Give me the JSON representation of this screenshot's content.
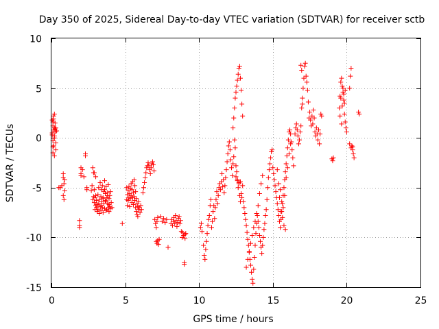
{
  "chart_data": {
    "type": "scatter",
    "title": "Day 350 of 2025, Sidereal Day-to-day VTEC variation (SDTVAR) for receiver sctb",
    "xlabel": "GPS time / hours",
    "ylabel": "SDTVAR / TECUs",
    "xlim": [
      0,
      25
    ],
    "ylim": [
      -15,
      10
    ],
    "xticks": [
      0,
      5,
      10,
      15,
      20,
      25
    ],
    "yticks": [
      -15,
      -10,
      -5,
      0,
      5,
      10
    ],
    "xtick_labels": [
      "0",
      "5",
      "10",
      "15",
      "20",
      "25"
    ],
    "ytick_labels": [
      "-15",
      "-10",
      "-5",
      "0",
      "5",
      "10"
    ],
    "grid": true,
    "marker": "+",
    "color": "#ff0000",
    "series": [
      {
        "name": "SDTVAR",
        "x": [
          0.05,
          0.05,
          0.1,
          0.1,
          0.1,
          0.15,
          0.15,
          0.15,
          0.2,
          0.2,
          0.2,
          0.25,
          0.25,
          0.3,
          0.3,
          0.05,
          0.1,
          0.15,
          0.2,
          0.25,
          0.3,
          0.35,
          0.1,
          0.2,
          0.5,
          0.6,
          0.7,
          0.8,
          0.8,
          0.8,
          0.85,
          0.85,
          0.9,
          0.9,
          1.9,
          1.9,
          1.9,
          2.0,
          2.0,
          2.0,
          2.1,
          2.2,
          2.3,
          2.3,
          2.4,
          2.4,
          2.7,
          2.75,
          2.8,
          2.8,
          2.85,
          2.85,
          2.9,
          2.9,
          2.95,
          2.95,
          3.0,
          3.0,
          3.05,
          3.05,
          3.1,
          3.1,
          3.15,
          3.15,
          3.2,
          3.2,
          3.25,
          3.25,
          3.3,
          3.3,
          3.35,
          3.35,
          3.4,
          3.4,
          3.45,
          3.45,
          3.5,
          3.5,
          3.55,
          3.55,
          3.6,
          3.6,
          3.65,
          3.65,
          3.7,
          3.7,
          3.75,
          3.75,
          3.8,
          3.8,
          3.85,
          3.85,
          3.9,
          3.9,
          3.95,
          3.95,
          4.0,
          4.0,
          4.05,
          4.1,
          2.9,
          3.0,
          3.4,
          3.5,
          3.6,
          3.7,
          3.8,
          3.9,
          4.8,
          5.1,
          5.1,
          5.15,
          5.15,
          5.2,
          5.2,
          5.25,
          5.25,
          5.3,
          5.3,
          5.35,
          5.35,
          5.4,
          5.4,
          5.45,
          5.45,
          5.5,
          5.5,
          5.55,
          5.55,
          5.6,
          5.6,
          5.65,
          5.65,
          5.7,
          5.7,
          5.75,
          5.75,
          5.8,
          5.8,
          5.85,
          5.85,
          5.9,
          5.9,
          5.95,
          6.0,
          6.05,
          6.1,
          6.2,
          6.25,
          6.3,
          6.35,
          6.4,
          6.45,
          6.5,
          6.55,
          6.6,
          6.65,
          6.7,
          6.75,
          6.8,
          6.85,
          6.9,
          6.95,
          7.0,
          7.05,
          7.1,
          7.15,
          7.2,
          7.1,
          7.15,
          7.2,
          7.25,
          7.3,
          7.4,
          7.5,
          7.6,
          7.7,
          7.8,
          7.9,
          8.1,
          8.15,
          8.2,
          8.25,
          8.3,
          8.35,
          8.4,
          8.45,
          8.5,
          8.55,
          8.6,
          8.65,
          8.7,
          8.75,
          8.8,
          8.85,
          8.9,
          8.95,
          9.0,
          9.0,
          9.05,
          9.05,
          9.1,
          10.1,
          10.15,
          10.2,
          10.3,
          10.35,
          10.4,
          10.45,
          10.5,
          10.55,
          10.6,
          10.65,
          10.7,
          10.75,
          10.8,
          10.85,
          10.9,
          10.95,
          11.0,
          11.05,
          11.1,
          11.15,
          11.2,
          11.25,
          11.3,
          11.35,
          11.4,
          11.45,
          11.5,
          11.55,
          11.6,
          11.65,
          11.7,
          11.75,
          11.8,
          11.85,
          11.9,
          11.95,
          12.0,
          12.05,
          12.1,
          12.15,
          12.2,
          12.25,
          12.3,
          12.35,
          12.4,
          12.45,
          12.5,
          12.55,
          12.6,
          12.65,
          12.7,
          12.75,
          12.8,
          12.85,
          12.9,
          12.95,
          12.3,
          12.35,
          12.4,
          12.45,
          12.5,
          12.55,
          12.6,
          12.65,
          12.7,
          12.75,
          12.8,
          12.85,
          12.9,
          12.95,
          12.5,
          12.6,
          12.7,
          12.8,
          13.0,
          13.05,
          13.1,
          13.15,
          13.2,
          13.25,
          13.3,
          13.35,
          13.4,
          13.45,
          13.5,
          13.55,
          13.6,
          13.65,
          13.7,
          13.75,
          13.8,
          13.85,
          13.9,
          13.95,
          14.0,
          14.05,
          14.1,
          14.15,
          14.2,
          14.25,
          14.3,
          14.35,
          14.4,
          14.45,
          14.5,
          14.55,
          14.6,
          14.65,
          14.7,
          14.75,
          14.8,
          14.85,
          14.9,
          14.95,
          13.2,
          13.3,
          13.4,
          13.5,
          13.6,
          13.7,
          13.8,
          13.9,
          14.0,
          14.1,
          14.2,
          14.3,
          15.0,
          15.05,
          15.1,
          15.15,
          15.2,
          15.25,
          15.3,
          15.35,
          15.4,
          15.45,
          15.5,
          15.55,
          15.6,
          15.65,
          15.7,
          15.75,
          15.8,
          15.85,
          15.9,
          15.95,
          16.0,
          16.05,
          16.1,
          16.15,
          16.2,
          16.25,
          16.3,
          16.35,
          16.4,
          15.3,
          15.4,
          15.5,
          15.6,
          15.7,
          15.8,
          15.9,
          16.0,
          16.1,
          16.2,
          15.45,
          15.55,
          15.65,
          15.75,
          15.85,
          16.5,
          16.55,
          16.6,
          16.65,
          16.7,
          16.75,
          16.8,
          16.85,
          16.9,
          16.95,
          17.0,
          17.05,
          17.1,
          17.15,
          17.2,
          17.25,
          17.3,
          17.35,
          17.4,
          17.45,
          17.5,
          17.55,
          17.6,
          17.65,
          17.7,
          17.75,
          17.8,
          17.85,
          17.9,
          17.95,
          18.0,
          18.05,
          18.1,
          18.15,
          18.2,
          18.25,
          18.3,
          16.9,
          16.95,
          17.0,
          19.0,
          19.05,
          19.1,
          19.5,
          19.55,
          19.6,
          19.65,
          19.7,
          19.75,
          19.8,
          19.85,
          19.9,
          19.95,
          20.0,
          19.6,
          19.7,
          19.8,
          19.9,
          19.55,
          19.65,
          19.75,
          19.85,
          20.2,
          20.25,
          20.3,
          20.35,
          20.4,
          20.45,
          20.5,
          20.2,
          20.3,
          20.4,
          20.8,
          20.85
        ],
        "y": [
          1.8,
          0.5,
          1.2,
          -0.3,
          -1.5,
          0.8,
          2.2,
          -0.8,
          1.0,
          0.2,
          -1.8,
          1.5,
          0.6,
          1.0,
          -0.5,
          0.3,
          1.6,
          1.9,
          2.4,
          0.9,
          -1.2,
          0.7,
          -0.9,
          0.0,
          -5.0,
          -5.0,
          -4.8,
          -4.0,
          -5.8,
          -3.6,
          -6.2,
          -4.6,
          -5.3,
          -4.2,
          -8.3,
          -8.8,
          -9.0,
          -3.0,
          -3.6,
          -3.8,
          -3.2,
          -3.9,
          -1.8,
          -1.6,
          -5.0,
          -5.2,
          -5.3,
          -4.8,
          -6.2,
          -3.0,
          -5.9,
          -3.5,
          -6.5,
          -5.2,
          -7.2,
          -6.0,
          -6.8,
          -5.8,
          -7.0,
          -6.3,
          -6.7,
          -7.4,
          -5.7,
          -7.2,
          -6.6,
          -5.0,
          -7.6,
          -6.2,
          -6.9,
          -4.5,
          -5.9,
          -7.3,
          -6.4,
          -5.2,
          -7.0,
          -4.8,
          -6.1,
          -7.5,
          -6.6,
          -5.4,
          -7.1,
          -4.3,
          -6.3,
          -5.6,
          -7.3,
          -4.9,
          -6.0,
          -7.2,
          -5.5,
          -6.6,
          -7.0,
          -4.7,
          -6.1,
          -7.4,
          -5.8,
          -6.9,
          -7.1,
          -5.4,
          -6.5,
          -7.0,
          -3.5,
          -3.9,
          -6.8,
          -6.0,
          -5.2,
          -6.4,
          -5.8,
          -6.7,
          -8.6,
          -6.2,
          -5.0,
          -5.7,
          -6.8,
          -5.3,
          -6.3,
          -6.0,
          -4.9,
          -5.6,
          -6.9,
          -5.1,
          -6.1,
          -4.6,
          -5.8,
          -6.5,
          -5.2,
          -4.4,
          -6.0,
          -5.5,
          -6.7,
          -4.2,
          -5.9,
          -6.3,
          -4.8,
          -5.4,
          -7.0,
          -6.1,
          -7.4,
          -6.6,
          -7.7,
          -6.9,
          -7.9,
          -6.4,
          -7.2,
          -7.0,
          -7.5,
          -6.8,
          -7.2,
          -5.5,
          -5.0,
          -4.5,
          -4.0,
          -3.5,
          -3.0,
          -2.8,
          -2.5,
          -2.8,
          -3.2,
          -3.6,
          -3.0,
          -2.6,
          -2.4,
          -2.7,
          -3.3,
          -8.2,
          -8.6,
          -9.0,
          -8.4,
          -8.0,
          -10.4,
          -10.6,
          -10.3,
          -10.7,
          -10.2,
          -7.9,
          -8.4,
          -8.1,
          -8.5,
          -8.2,
          -11.0,
          -8.6,
          -8.2,
          -8.8,
          -8.4,
          -8.0,
          -8.6,
          -7.8,
          -8.3,
          -8.9,
          -8.5,
          -8.1,
          -7.9,
          -8.6,
          -8.3,
          -9.4,
          -10.0,
          -9.5,
          -9.8,
          -12.5,
          -12.7,
          -9.7,
          -10.1,
          -9.6,
          -9.0,
          -8.6,
          -9.4,
          -10.8,
          -11.8,
          -12.2,
          -11.2,
          -10.4,
          -9.6,
          -8.8,
          -8.2,
          -7.8,
          -6.8,
          -6.2,
          -9.0,
          -8.4,
          -7.4,
          -6.8,
          -8.1,
          -7.0,
          -6.2,
          -5.4,
          -6.6,
          -5.8,
          -5.0,
          -4.6,
          -5.2,
          -4.4,
          -3.6,
          -4.9,
          -4.2,
          -5.5,
          -4.8,
          -4.0,
          -3.2,
          -2.4,
          -1.6,
          -0.8,
          -0.4,
          -1.2,
          -2.2,
          -3.0,
          -3.8,
          -2.6,
          -1.9,
          -0.2,
          -1.0,
          -2.8,
          -3.4,
          -4.3,
          -5.0,
          -4.6,
          -5.8,
          -6.4,
          -5.6,
          -6.0,
          -4.8,
          1.0,
          2.0,
          3.0,
          4.0,
          4.6,
          5.2,
          5.8,
          6.4,
          7.0,
          7.2,
          6.0,
          4.8,
          3.4,
          2.2,
          -3.9,
          -4.2,
          -4.5,
          -4.4,
          -6.4,
          -7.0,
          -7.6,
          -8.2,
          -8.8,
          -9.5,
          -10.2,
          -10.8,
          -11.5,
          -12.2,
          -12.8,
          -13.5,
          -14.2,
          -14.6,
          -13.2,
          -12.0,
          -10.8,
          -9.6,
          -8.6,
          -7.8,
          -8.4,
          -9.0,
          -9.8,
          -10.4,
          -11.0,
          -11.6,
          -10.8,
          -10.0,
          -9.2,
          -8.6,
          -7.8,
          -7.2,
          -6.2,
          -5.0,
          -4.0,
          -3.2,
          -2.6,
          -2.0,
          -1.4,
          -1.2,
          -13.0,
          -12.2,
          -11.4,
          -10.6,
          -9.8,
          -9.0,
          -8.4,
          -7.6,
          -6.8,
          -5.6,
          -4.6,
          -3.8,
          -3.0,
          -3.6,
          -4.2,
          -4.8,
          -5.4,
          -6.0,
          -6.6,
          -7.2,
          -7.8,
          -8.4,
          -9.0,
          -8.2,
          -7.4,
          -6.6,
          -5.8,
          -5.0,
          -4.2,
          -3.4,
          -2.6,
          -1.8,
          -1.0,
          -0.2,
          0.6,
          0.8,
          0.4,
          -0.4,
          -1.2,
          -2.0,
          -2.8,
          -3.2,
          -4.6,
          -5.2,
          -6.4,
          -7.0,
          -5.8,
          -4.0,
          -3.0,
          -1.6,
          -0.6,
          -6.0,
          -7.4,
          -8.0,
          -8.8,
          -9.2,
          0.4,
          1.0,
          1.4,
          0.8,
          0.2,
          -0.6,
          -0.2,
          0.6,
          1.2,
          3.0,
          4.0,
          5.0,
          6.0,
          7.2,
          7.5,
          6.2,
          5.6,
          4.8,
          3.6,
          2.0,
          2.6,
          1.8,
          1.2,
          2.2,
          1.4,
          2.8,
          2.0,
          0.6,
          0.2,
          1.0,
          0.4,
          -0.2,
          0.8,
          -0.6,
          0.4,
          2.4,
          2.2,
          7.3,
          6.8,
          3.4,
          -2.1,
          -2.3,
          -2.0,
          3.0,
          4.2,
          5.6,
          6.0,
          5.2,
          4.6,
          3.8,
          2.4,
          1.6,
          1.0,
          0.6,
          4.0,
          3.2,
          4.4,
          4.8,
          2.2,
          1.4,
          5.0,
          3.5,
          5.0,
          6.2,
          7.0,
          -0.8,
          -1.2,
          -1.6,
          -2.0,
          -0.6,
          -1.0,
          -0.9,
          2.6,
          2.4
        ]
      }
    ]
  }
}
